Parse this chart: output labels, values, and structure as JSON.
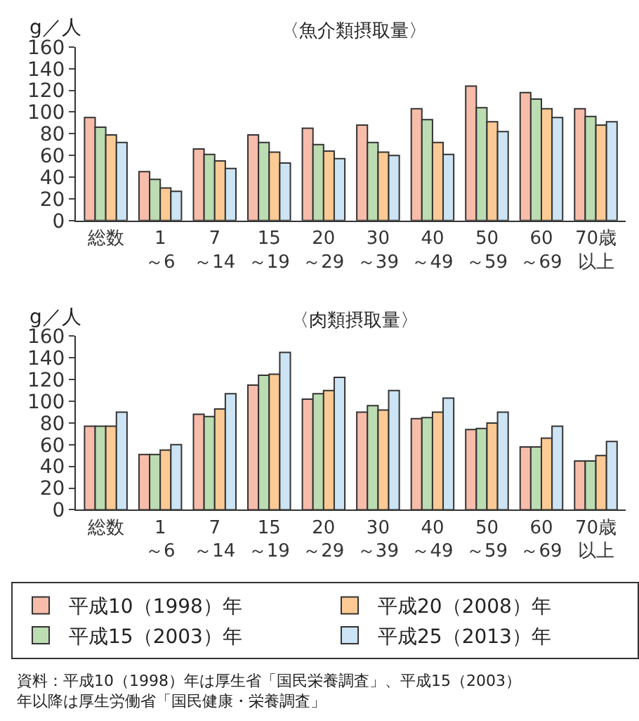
{
  "chart_data": [
    {
      "type": "bar",
      "title": "〈魚介類摂取量〉",
      "ylabel": "g／人",
      "categories": [
        "総数",
        "1\n～6",
        "7\n～14",
        "15\n～19",
        "20\n～29",
        "30\n～39",
        "40\n～49",
        "50\n～59",
        "60\n～69",
        "70歳以上"
      ],
      "series": [
        {
          "name": "平成10（1998）年",
          "color": "#f8bcaa",
          "values": [
            95,
            45,
            66,
            79,
            85,
            88,
            103,
            124,
            118,
            103
          ]
        },
        {
          "name": "平成15（2003）年",
          "color": "#bcdcb2",
          "values": [
            86,
            38,
            61,
            72,
            70,
            72,
            93,
            104,
            112,
            96
          ]
        },
        {
          "name": "平成20（2008）年",
          "color": "#fcca94",
          "values": [
            79,
            30,
            55,
            63,
            64,
            63,
            72,
            91,
            103,
            88
          ]
        },
        {
          "name": "平成25（2013）年",
          "color": "#cce4f4",
          "values": [
            72,
            27,
            48,
            53,
            57,
            60,
            61,
            82,
            95,
            91
          ]
        }
      ],
      "ylim": [
        0,
        160
      ],
      "yticks": [
        0,
        20,
        40,
        60,
        80,
        100,
        120,
        140,
        160
      ],
      "legend": "bottom"
    },
    {
      "type": "bar",
      "title": "〈肉類摂取量〉",
      "ylabel": "g／人",
      "categories": [
        "総数",
        "1\n～6",
        "7\n～14",
        "15\n～19",
        "20\n～29",
        "30\n～39",
        "40\n～49",
        "50\n～59",
        "60\n～69",
        "70歳以上"
      ],
      "series": [
        {
          "color": "#f8bcaa",
          "values": [
            77,
            51,
            88,
            115,
            102,
            90,
            84,
            74,
            58,
            45
          ]
        },
        {
          "color": "#bcdcb2",
          "values": [
            77,
            51,
            86,
            124,
            107,
            96,
            85,
            75,
            58,
            45
          ]
        },
        {
          "color": "#fcca94",
          "values": [
            77,
            55,
            93,
            125,
            110,
            92,
            90,
            80,
            66,
            50
          ]
        },
        {
          "color": "#cce4f4",
          "values": [
            90,
            60,
            107,
            145,
            122,
            110,
            103,
            90,
            77,
            63
          ]
        }
      ],
      "ylim": [
        0,
        160
      ],
      "yticks": [
        0,
        20,
        40,
        60,
        80,
        100,
        120,
        140,
        160
      ],
      "annotations": [
        "資料：平成10（1998）年は厚生省「国民栄養調査」、平成15（2003）年以降は厚生労働省「国民健康・栄養調査」"
      ]
    }
  ]
}
